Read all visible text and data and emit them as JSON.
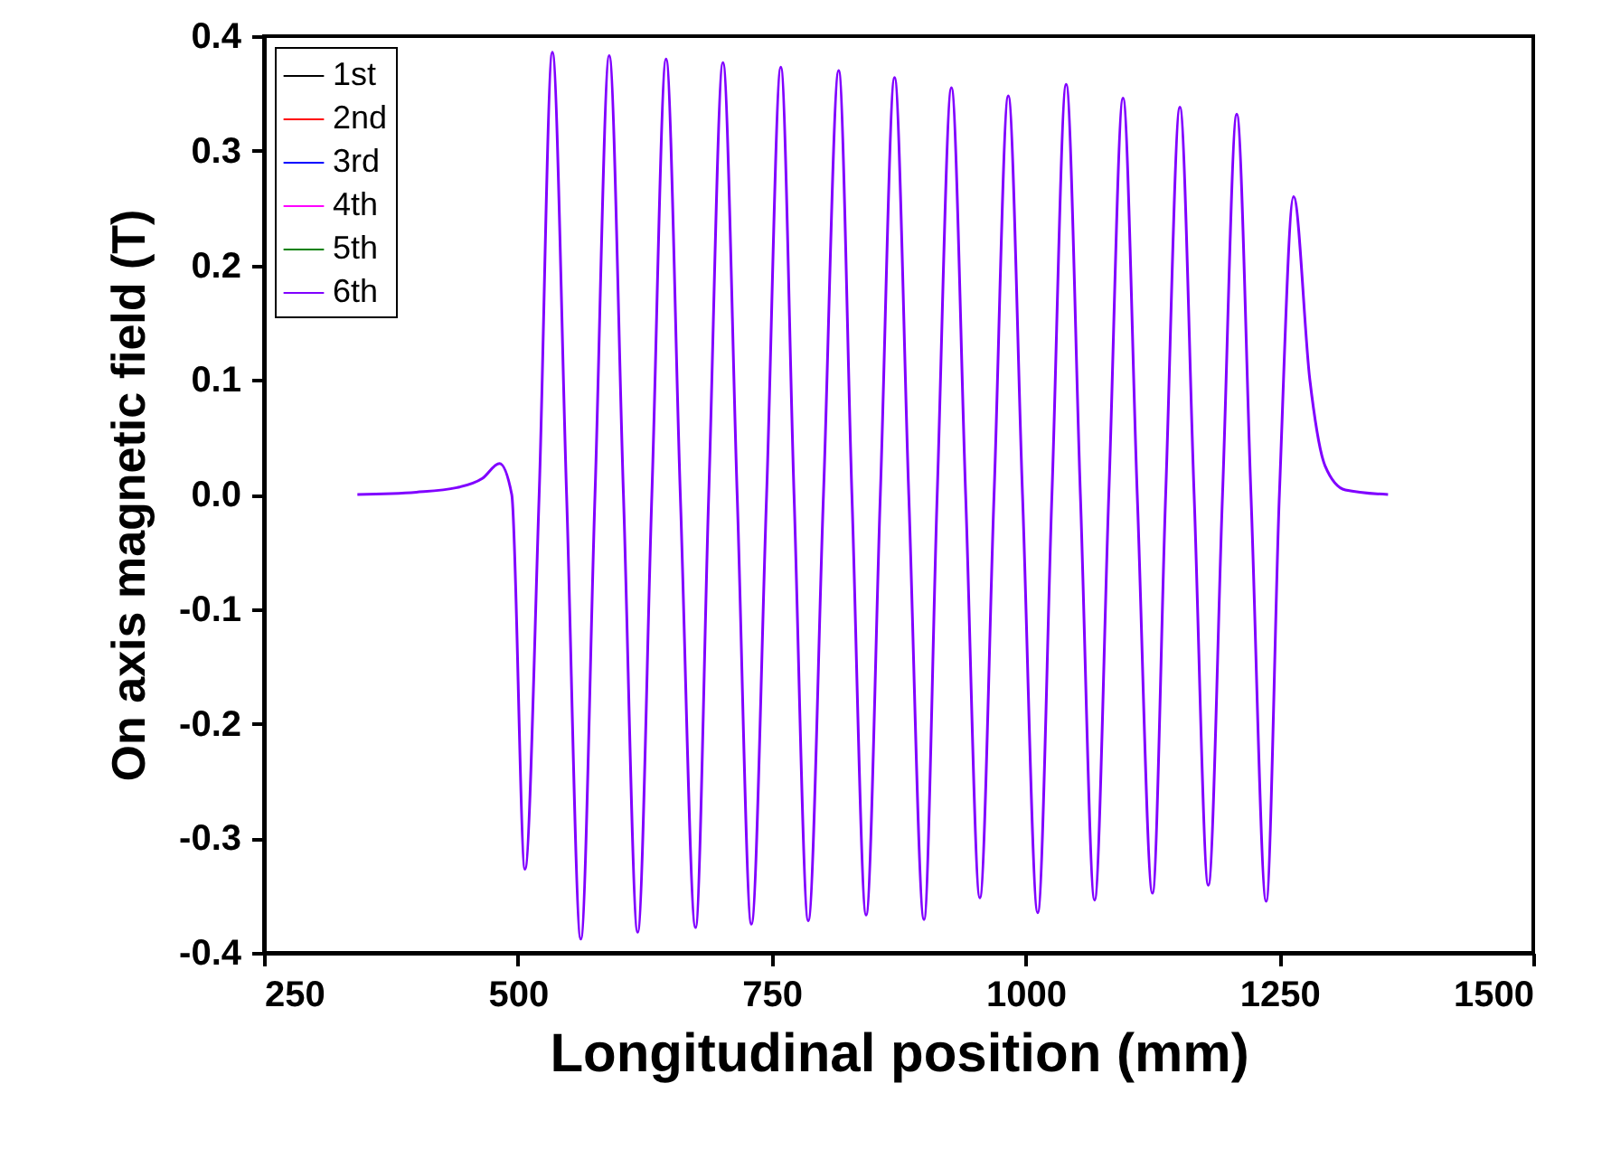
{
  "chart_data": {
    "type": "line",
    "xlabel": "Longitudinal position (mm)",
    "ylabel": "On axis magnetic field (T)",
    "x": [
      342,
      400,
      440,
      465,
      482,
      494,
      507,
      521,
      534,
      548,
      562,
      576,
      590,
      604,
      618,
      632,
      646,
      660,
      675,
      688,
      702,
      716,
      730,
      745,
      759,
      772,
      786,
      801,
      816,
      829,
      843,
      857,
      871,
      885,
      900,
      913,
      927,
      941,
      955,
      969,
      983,
      997,
      1012,
      1026,
      1040,
      1054,
      1068,
      1082,
      1096,
      1110,
      1125,
      1138,
      1152,
      1166,
      1180,
      1194,
      1208,
      1222,
      1237,
      1250,
      1264,
      1280,
      1295,
      1315,
      1357
    ],
    "series": [
      {
        "name": "1st",
        "color": "#000000",
        "values": [
          null,
          null,
          null,
          null,
          null,
          null,
          null,
          null,
          null,
          null,
          null,
          null,
          null,
          null,
          null,
          null,
          null,
          null,
          null,
          null,
          null,
          null,
          null,
          null,
          null,
          null,
          null,
          null,
          null,
          null,
          null,
          null,
          null,
          null,
          null,
          null,
          null,
          null,
          null,
          null,
          null,
          null,
          null,
          null,
          null,
          null,
          null,
          null,
          null,
          null,
          null,
          null,
          null,
          null,
          null,
          null,
          null,
          null,
          null,
          null,
          null,
          null,
          null,
          null,
          null
        ]
      },
      {
        "name": "2nd",
        "color": "#ff0000",
        "values": [
          null,
          null,
          null,
          null,
          null,
          null,
          null,
          null,
          null,
          null,
          null,
          null,
          null,
          null,
          null,
          null,
          null,
          null,
          null,
          null,
          null,
          null,
          null,
          null,
          null,
          null,
          null,
          null,
          null,
          null,
          null,
          null,
          null,
          null,
          null,
          null,
          null,
          null,
          null,
          null,
          null,
          null,
          null,
          null,
          null,
          null,
          null,
          null,
          null,
          null,
          null,
          null,
          null,
          null,
          null,
          null,
          null,
          null,
          null,
          null,
          null,
          null,
          null,
          null,
          null
        ]
      },
      {
        "name": "3rd",
        "color": "#0000ff",
        "values": [
          null,
          null,
          null,
          null,
          null,
          null,
          null,
          null,
          null,
          null,
          null,
          null,
          null,
          null,
          null,
          null,
          null,
          null,
          null,
          null,
          null,
          null,
          null,
          null,
          null,
          null,
          null,
          null,
          null,
          null,
          null,
          null,
          null,
          null,
          null,
          null,
          null,
          null,
          null,
          null,
          null,
          null,
          null,
          null,
          null,
          null,
          null,
          null,
          null,
          null,
          null,
          null,
          null,
          null,
          null,
          null,
          null,
          null,
          null,
          null,
          null,
          null,
          null,
          null,
          null
        ]
      },
      {
        "name": "4th",
        "color": "#ff00ff",
        "values": [
          null,
          null,
          null,
          null,
          null,
          null,
          null,
          null,
          null,
          null,
          null,
          null,
          null,
          null,
          null,
          null,
          null,
          null,
          null,
          null,
          null,
          null,
          null,
          null,
          null,
          null,
          null,
          null,
          null,
          null,
          null,
          null,
          null,
          null,
          null,
          null,
          null,
          null,
          null,
          null,
          null,
          null,
          null,
          null,
          null,
          null,
          null,
          null,
          null,
          null,
          null,
          null,
          null,
          null,
          null,
          null,
          null,
          null,
          null,
          null,
          null,
          null,
          null,
          null,
          null
        ]
      },
      {
        "name": "5th",
        "color": "#008000",
        "values": [
          null,
          null,
          null,
          null,
          null,
          null,
          null,
          null,
          null,
          null,
          null,
          null,
          null,
          null,
          null,
          null,
          null,
          null,
          null,
          null,
          null,
          null,
          null,
          null,
          null,
          null,
          null,
          null,
          null,
          null,
          null,
          null,
          null,
          null,
          null,
          null,
          null,
          null,
          null,
          null,
          null,
          null,
          null,
          null,
          null,
          null,
          null,
          null,
          null,
          null,
          null,
          null,
          null,
          null,
          null,
          null,
          null,
          null,
          null,
          null,
          null,
          null,
          null,
          null,
          null
        ]
      },
      {
        "name": "6th",
        "color": "#8000ff",
        "values": [
          0,
          0.002,
          0.006,
          0.014,
          0.027,
          0,
          -0.327,
          0,
          0.386,
          0,
          -0.388,
          0,
          0.383,
          0,
          -0.382,
          0,
          0.38,
          0,
          -0.378,
          0,
          0.377,
          0,
          -0.375,
          0,
          0.373,
          0,
          -0.372,
          0,
          0.37,
          0,
          -0.367,
          0,
          0.364,
          0,
          -0.371,
          0,
          0.355,
          0,
          -0.352,
          0,
          0.348,
          0,
          -0.365,
          0,
          0.358,
          0,
          -0.354,
          0,
          0.346,
          0,
          -0.348,
          0,
          0.338,
          0,
          -0.341,
          0,
          0.332,
          0,
          -0.355,
          0,
          0.26,
          0.1,
          0.025,
          0.004,
          0
        ]
      }
    ],
    "xlim": [
      250,
      1500
    ],
    "xticks": [
      250,
      500,
      750,
      1000,
      1250,
      1500
    ],
    "ylim": [
      -0.4,
      0.4
    ],
    "yticks": [
      {
        "value": -0.4,
        "label": "-0.4"
      },
      {
        "value": -0.3,
        "label": "-0.3"
      },
      {
        "value": -0.2,
        "label": "-0.2"
      },
      {
        "value": -0.1,
        "label": "-0.1"
      },
      {
        "value": 0,
        "label": "0.0"
      },
      {
        "value": 0.1,
        "label": "0.1"
      },
      {
        "value": 0.2,
        "label": "0.2"
      },
      {
        "value": 0.3,
        "label": "0.3"
      },
      {
        "value": 0.4,
        "label": "0.4"
      }
    ],
    "grid": false,
    "legend": "top left"
  }
}
